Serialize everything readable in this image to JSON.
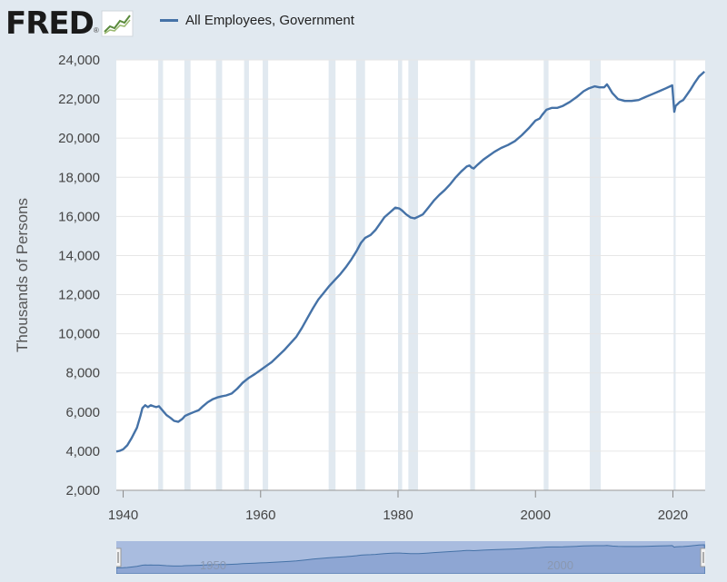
{
  "header": {
    "logo_text": "FRED",
    "logo_mark": "®"
  },
  "colors": {
    "series": "#4572a7",
    "recession": "#e1e9f0",
    "background": "#e1e9f0",
    "plot_bg": "#ffffff",
    "grid": "#e6e6e6"
  },
  "chart_data": {
    "type": "line",
    "title": "",
    "xlabel": "",
    "ylabel": "Thousands of Persons",
    "xlim": [
      1939,
      2024.7
    ],
    "ylim": [
      2000,
      24000
    ],
    "y_ticks": [
      2000,
      4000,
      6000,
      8000,
      10000,
      12000,
      14000,
      16000,
      18000,
      20000,
      22000,
      24000
    ],
    "y_tick_labels": [
      "2,000",
      "4,000",
      "6,000",
      "8,000",
      "10,000",
      "12,000",
      "14,000",
      "16,000",
      "18,000",
      "20,000",
      "22,000",
      "24,000"
    ],
    "x_ticks": [
      1940,
      1960,
      1980,
      2000,
      2020
    ],
    "x_tick_labels": [
      "1940",
      "1960",
      "1980",
      "2000",
      "2020"
    ],
    "legend": [
      "All Employees, Government"
    ],
    "recessions": [
      [
        1945.1,
        1945.8
      ],
      [
        1948.9,
        1949.8
      ],
      [
        1953.5,
        1954.4
      ],
      [
        1957.6,
        1958.3
      ],
      [
        1960.3,
        1961.1
      ],
      [
        1969.9,
        1970.9
      ],
      [
        1973.9,
        1975.2
      ],
      [
        1980.0,
        1980.6
      ],
      [
        1981.5,
        1982.9
      ],
      [
        1990.5,
        1991.2
      ],
      [
        2001.2,
        2001.9
      ],
      [
        2007.9,
        2009.5
      ],
      [
        2020.1,
        2020.4
      ]
    ],
    "series": [
      {
        "name": "All Employees, Government",
        "x": [
          1939.0,
          1939.5,
          1940.0,
          1940.6,
          1941.2,
          1942.0,
          1942.5,
          1942.8,
          1943.2,
          1943.6,
          1944.0,
          1944.4,
          1944.8,
          1945.2,
          1945.8,
          1946.3,
          1946.9,
          1947.4,
          1948.0,
          1948.6,
          1949.0,
          1949.6,
          1950.3,
          1951.0,
          1951.6,
          1952.3,
          1953.0,
          1953.7,
          1954.3,
          1955.0,
          1955.8,
          1956.6,
          1957.4,
          1958.3,
          1959.2,
          1960.0,
          1960.8,
          1961.6,
          1962.5,
          1963.4,
          1964.3,
          1965.2,
          1966.0,
          1966.8,
          1967.6,
          1968.4,
          1969.2,
          1970.0,
          1970.8,
          1971.6,
          1972.4,
          1973.2,
          1974.0,
          1974.6,
          1975.2,
          1976.0,
          1976.7,
          1977.4,
          1978.0,
          1978.8,
          1979.6,
          1980.2,
          1980.6,
          1981.2,
          1981.8,
          1982.4,
          1983.0,
          1983.6,
          1984.4,
          1985.2,
          1986.0,
          1986.8,
          1987.6,
          1988.4,
          1989.2,
          1990.0,
          1990.4,
          1990.7,
          1991.0,
          1991.6,
          1992.4,
          1993.2,
          1994.0,
          1995.0,
          1996.0,
          1997.0,
          1998.0,
          1999.0,
          2000.0,
          2000.6,
          2001.0,
          2001.6,
          2002.4,
          2003.2,
          2004.0,
          2005.0,
          2006.0,
          2007.0,
          2007.8,
          2008.6,
          2009.3,
          2010.0,
          2010.4,
          2010.7,
          2011.2,
          2012.0,
          2013.0,
          2014.0,
          2015.0,
          2016.0,
          2017.0,
          2018.0,
          2019.0,
          2019.9,
          2020.2,
          2020.4,
          2020.7,
          2021.0,
          2021.5,
          2022.0,
          2022.6,
          2023.2,
          2023.8,
          2024.6
        ],
        "values": [
          3980,
          4020,
          4100,
          4300,
          4650,
          5200,
          5800,
          6200,
          6350,
          6250,
          6350,
          6300,
          6250,
          6300,
          6050,
          5850,
          5700,
          5550,
          5500,
          5650,
          5800,
          5900,
          6000,
          6100,
          6300,
          6500,
          6650,
          6750,
          6800,
          6850,
          6950,
          7200,
          7500,
          7750,
          7950,
          8150,
          8350,
          8550,
          8850,
          9150,
          9500,
          9850,
          10300,
          10800,
          11300,
          11750,
          12100,
          12450,
          12750,
          13050,
          13400,
          13800,
          14250,
          14650,
          14900,
          15050,
          15300,
          15650,
          15950,
          16200,
          16450,
          16400,
          16300,
          16100,
          15950,
          15900,
          16000,
          16100,
          16450,
          16800,
          17100,
          17350,
          17650,
          18000,
          18300,
          18550,
          18600,
          18500,
          18450,
          18650,
          18900,
          19100,
          19300,
          19500,
          19650,
          19850,
          20150,
          20500,
          20900,
          21000,
          21200,
          21450,
          21550,
          21550,
          21650,
          21850,
          22100,
          22400,
          22550,
          22650,
          22600,
          22600,
          22750,
          22600,
          22300,
          22000,
          21900,
          21900,
          21950,
          22100,
          22250,
          22400,
          22550,
          22700,
          21350,
          21650,
          21750,
          21850,
          21950,
          22200,
          22500,
          22850,
          23150,
          23400
        ]
      }
    ]
  }
}
